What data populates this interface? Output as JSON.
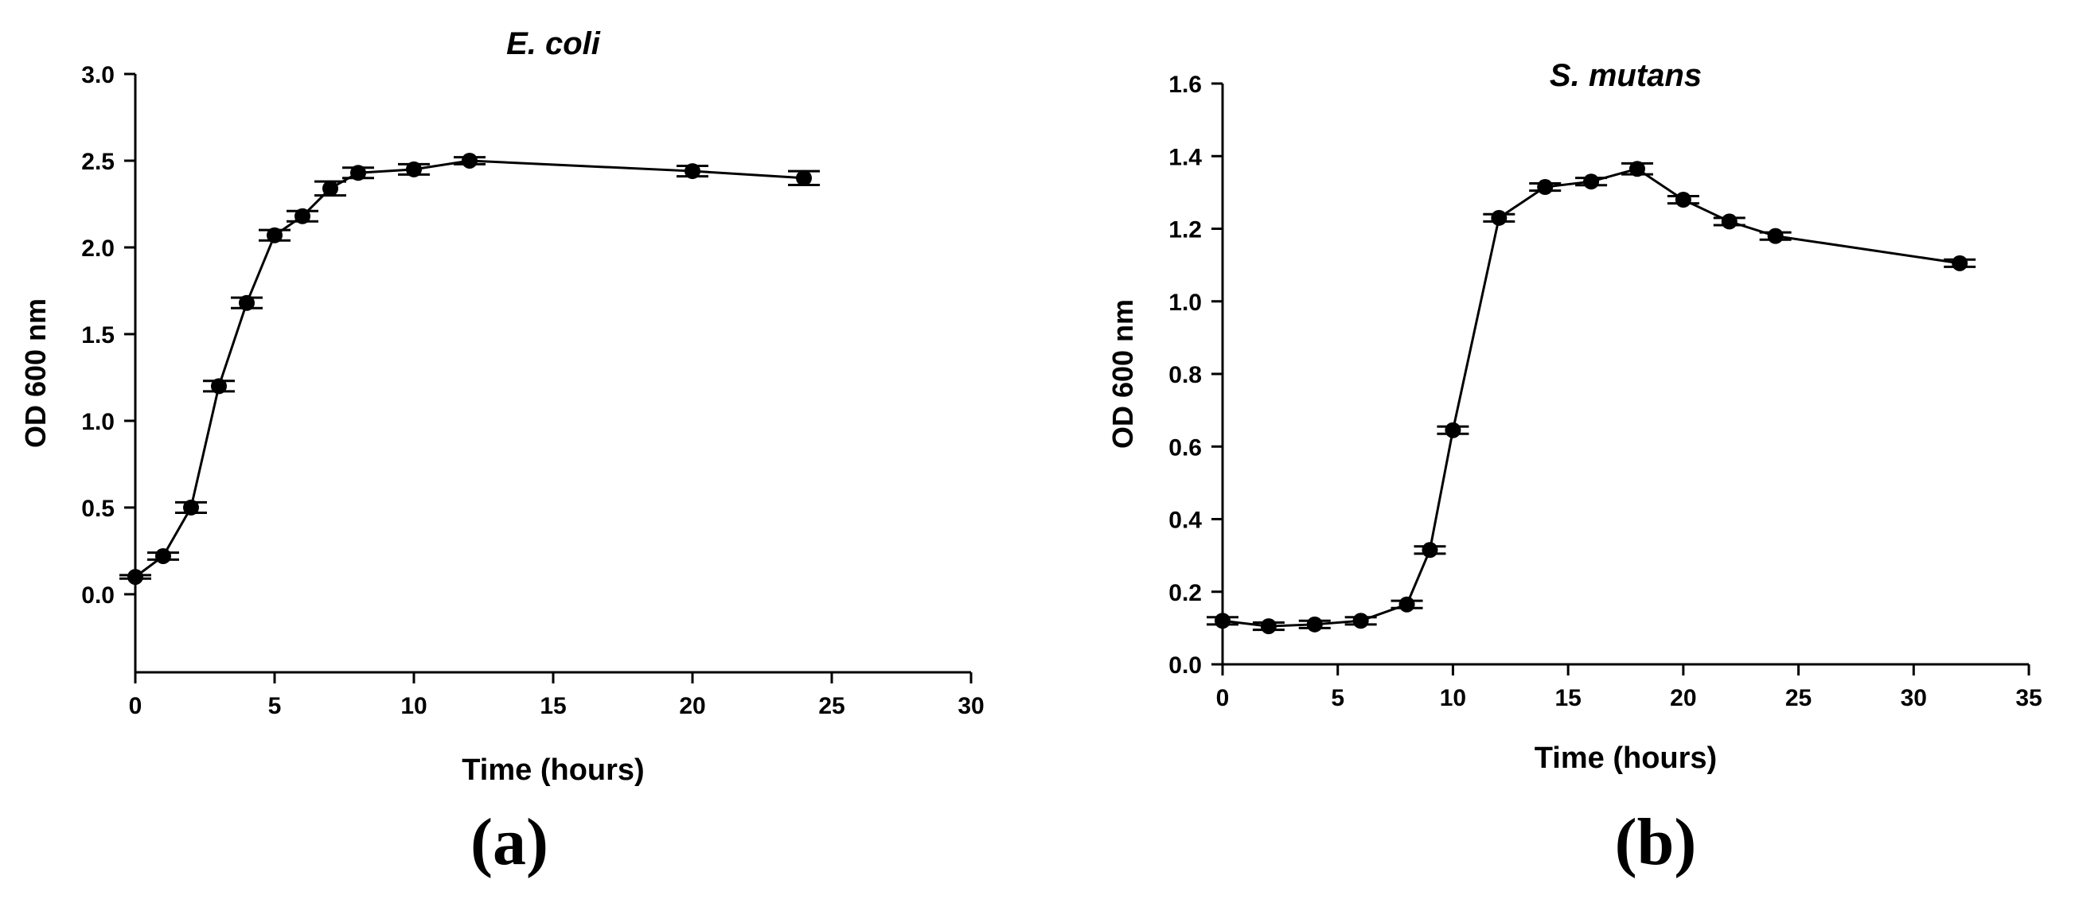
{
  "chart_data": [
    {
      "type": "line",
      "panel_label": "(a)",
      "title": "E. coli",
      "xlabel": "Time (hours)",
      "ylabel": "OD 600 nm",
      "xlim": [
        0,
        30
      ],
      "ylim": [
        -0.45,
        3.0
      ],
      "xticks": [
        0,
        5,
        10,
        15,
        20,
        25,
        30
      ],
      "yticks": [
        0.0,
        0.5,
        1.0,
        1.5,
        2.0,
        2.5,
        3.0
      ],
      "xtick_labels": [
        "0",
        "5",
        "10",
        "15",
        "20",
        "25",
        "30"
      ],
      "ytick_labels": [
        "0.0",
        "0.5",
        "1.0",
        "1.5",
        "2.0",
        "2.5",
        "3.0"
      ],
      "grid": false,
      "series": [
        {
          "name": "E. coli",
          "x": [
            0,
            1,
            2,
            3,
            4,
            5,
            6,
            7,
            8,
            10,
            12,
            20,
            24
          ],
          "y": [
            0.1,
            0.22,
            0.5,
            1.2,
            1.68,
            2.07,
            2.18,
            2.34,
            2.43,
            2.45,
            2.5,
            2.44,
            2.4
          ],
          "error": [
            0.01,
            0.02,
            0.03,
            0.03,
            0.03,
            0.03,
            0.03,
            0.04,
            0.03,
            0.03,
            0.02,
            0.03,
            0.04
          ]
        }
      ]
    },
    {
      "type": "line",
      "panel_label": "(b)",
      "title": "S. mutans",
      "xlabel": "Time (hours)",
      "ylabel": "OD 600 nm",
      "xlim": [
        0,
        35
      ],
      "ylim": [
        0,
        1.6
      ],
      "xticks": [
        0,
        5,
        10,
        15,
        20,
        25,
        30,
        35
      ],
      "yticks": [
        0.0,
        0.2,
        0.4,
        0.6,
        0.8,
        1.0,
        1.2,
        1.4,
        1.6
      ],
      "xtick_labels": [
        "0",
        "5",
        "10",
        "15",
        "20",
        "25",
        "30",
        "35"
      ],
      "ytick_labels": [
        "0.0",
        "0.2",
        "0.4",
        "0.6",
        "0.8",
        "1.0",
        "1.2",
        "1.4",
        "1.6"
      ],
      "grid": false,
      "series": [
        {
          "name": "S. mutans",
          "x": [
            0,
            2,
            4,
            6,
            8,
            9,
            10,
            12,
            14,
            16,
            18,
            20,
            22,
            24,
            32
          ],
          "y": [
            0.12,
            0.105,
            0.11,
            0.12,
            0.165,
            0.315,
            0.645,
            1.23,
            1.315,
            1.33,
            1.365,
            1.28,
            1.22,
            1.18,
            1.105
          ],
          "error": [
            0.01,
            0.01,
            0.01,
            0.01,
            0.01,
            0.01,
            0.01,
            0.01,
            0.01,
            0.01,
            0.015,
            0.01,
            0.01,
            0.01,
            0.01
          ]
        }
      ]
    }
  ]
}
